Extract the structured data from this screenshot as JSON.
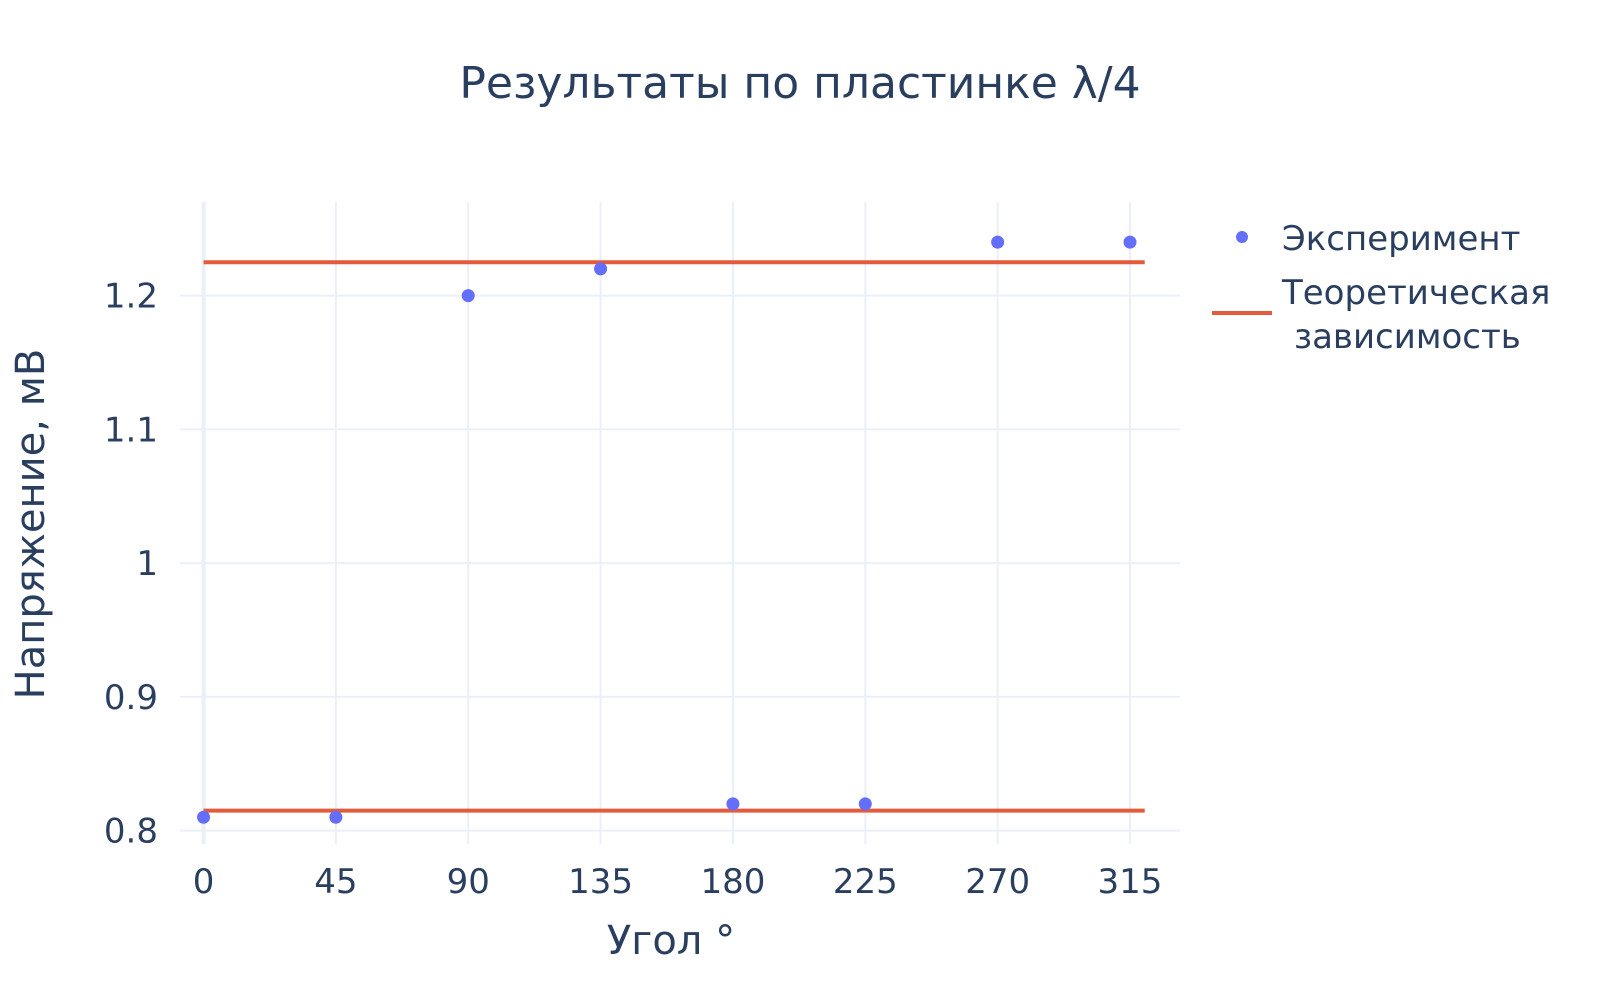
{
  "chart_data": {
    "type": "scatter",
    "title": "Результаты по пластинке λ/4",
    "xlabel": "Угол °",
    "ylabel": "Напряжение, мВ",
    "xlim": [
      -8,
      332
    ],
    "ylim": [
      0.79,
      1.27
    ],
    "x_ticks": [
      0,
      45,
      90,
      135,
      180,
      225,
      270,
      315
    ],
    "y_ticks": [
      0.8,
      0.9,
      1,
      1.1,
      1.2
    ],
    "y_tick_labels": [
      "0.8",
      "0.9",
      "1",
      "1.1",
      "1.2"
    ],
    "grid": true,
    "legend_position": "top-right",
    "series": [
      {
        "name": "Эксперимент",
        "mode": "markers",
        "color": "#636efa",
        "x": [
          0,
          45,
          90,
          135,
          180,
          225,
          270,
          315
        ],
        "y": [
          0.81,
          0.81,
          1.2,
          1.22,
          0.82,
          0.82,
          1.24,
          1.24
        ]
      },
      {
        "name": "Теоретическая зависимость",
        "legend_lines": [
          "Теоретическая",
          "зависимость"
        ],
        "mode": "lines",
        "color": "#e45a3c",
        "segments": [
          {
            "x": [
              0,
              320
            ],
            "y": [
              1.225,
              1.225
            ]
          },
          {
            "x": [
              0,
              320
            ],
            "y": [
              0.815,
              0.815
            ]
          }
        ]
      }
    ]
  }
}
